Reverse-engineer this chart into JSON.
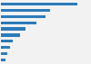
{
  "bars": [
    {
      "value": 85
    },
    {
      "value": 55
    },
    {
      "value": 50
    },
    {
      "value": 40
    },
    {
      "value": 28
    },
    {
      "value": 22
    },
    {
      "value": 13
    },
    {
      "value": 10
    },
    {
      "value": 7
    },
    {
      "value": 5
    }
  ],
  "bar_color": "#2b7bba",
  "background_color": "#f2f2f2",
  "plot_bg_color": "#f2f2f2",
  "xlim": [
    0,
    100
  ],
  "bar_height": 0.5,
  "grid_color": "#ffffff"
}
